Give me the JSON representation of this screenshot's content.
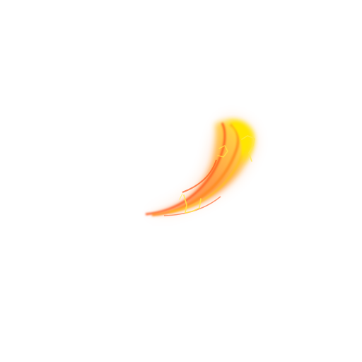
{
  "effect": {
    "kind": "fire-slash-arc",
    "background_color": "#ffffff",
    "colors": {
      "core": "#ffe600",
      "hot": "#ffc21a",
      "mid": "#ff8a1e",
      "edge": "#ff5a1a",
      "glow": "#ff7a1a",
      "sparkle": "#ffe94a"
    }
  }
}
